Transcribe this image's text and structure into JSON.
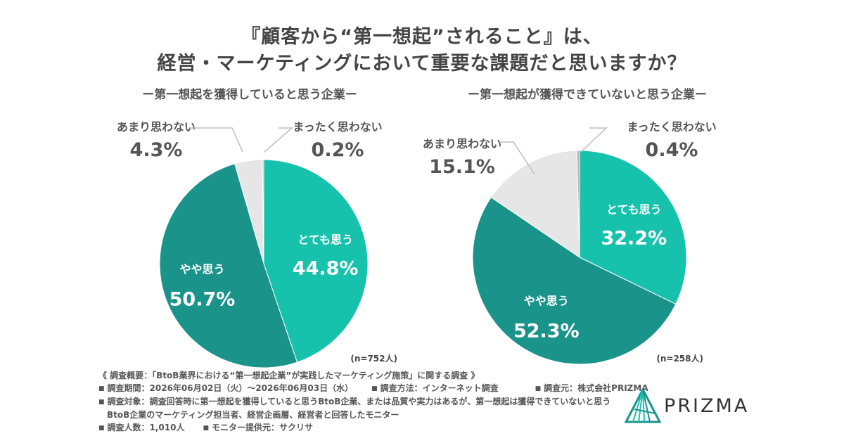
{
  "title": {
    "line1": "『顧客から“第一想起”されること』は、",
    "line2": "経営・マーケティングにおいて重要な課題だと思いますか？"
  },
  "colors": {
    "very": "#17c2ad",
    "somewhat": "#1a938b",
    "not_much": "#e6e6e6",
    "not_at_all": "#b4b4b4",
    "text": "#444444",
    "white": "#ffffff"
  },
  "chart_data": [
    {
      "type": "pie",
      "title": "ー第一想起を獲得していると思う企業ー",
      "note": "(n=752人)",
      "slices": [
        {
          "label": "とても思う",
          "value": 44.8,
          "display": "44.8%"
        },
        {
          "label": "やや思う",
          "value": 50.7,
          "display": "50.7%"
        },
        {
          "label": "あまり思わない",
          "value": 4.3,
          "display": "4.3%"
        },
        {
          "label": "まったく思わない",
          "value": 0.2,
          "display": "0.2%"
        }
      ]
    },
    {
      "type": "pie",
      "title": "ー第一想起が獲得できていないと思う企業ー",
      "note": "(n=258人)",
      "slices": [
        {
          "label": "とても思う",
          "value": 32.2,
          "display": "32.2%"
        },
        {
          "label": "やや思う",
          "value": 52.3,
          "display": "52.3%"
        },
        {
          "label": "あまり思わない",
          "value": 15.1,
          "display": "15.1%"
        },
        {
          "label": "まったく思わない",
          "value": 0.4,
          "display": "0.4%"
        }
      ]
    }
  ],
  "footer": {
    "overview": "《 調査概要：「BtoB業界における“第一想起企業”が実践したマーケティング施策」に関する調査 》",
    "period": "調査期間：2026年06月02日（火）〜2026年06月03日（水）",
    "method": "調査方法：インターネット調査",
    "source": "調査元：株式会社PRIZMA",
    "target_1": "調査対象：調査回答時に第一想起を獲得していると思うBtoB企業、または品質や実力はあるが、第一想起は獲得できていないと思う",
    "target_2": "BtoB企業のマーケティング担当者、経営企画層、経営者と回答したモニター",
    "count": "調査人数：1,010人",
    "provider": "モニター提供元：サクリサ",
    "bullet": "■"
  },
  "logo": {
    "text": "PRIZMA"
  }
}
